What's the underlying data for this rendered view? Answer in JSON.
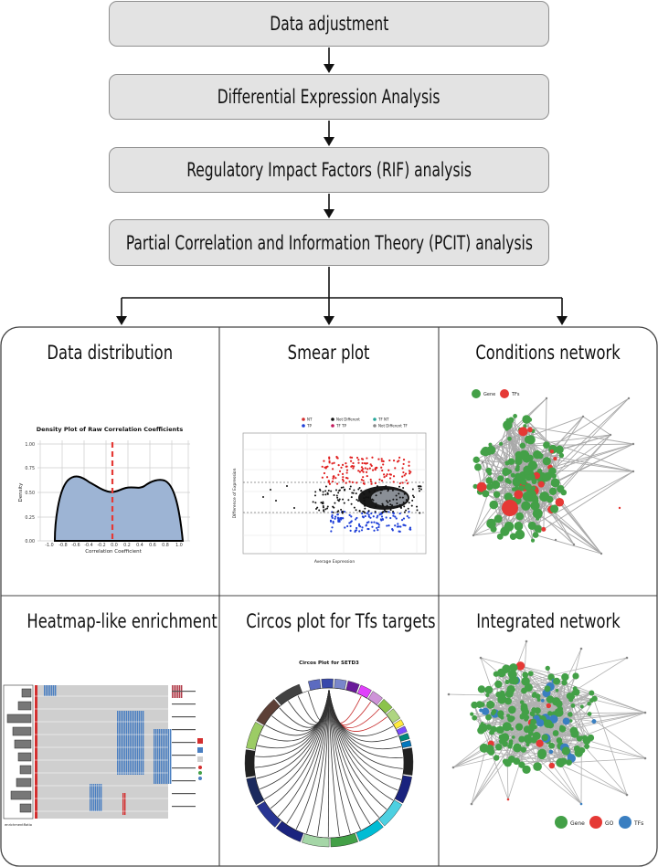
{
  "pipeline": {
    "steps": [
      "Data adjustment",
      "Differential Expression Analysis",
      "Regulatory Impact Factors (RIF) analysis",
      "Partial Correlation and Information Theory (PCIT) analysis"
    ]
  },
  "panels": {
    "data_distribution": {
      "title": "Data distribution",
      "plot_title": "Density Plot of Raw Correlation Coefficients",
      "xlabel": "Correlation Coefficient",
      "ylabel": "Density",
      "x_ticks": [
        "-1.0",
        "-0.8",
        "-0.6",
        "-0.4",
        "-0.2",
        "0.0",
        "0.2",
        "0.4",
        "0.6",
        "0.8",
        "1.0"
      ],
      "y_ticks": [
        "0.00",
        "0.25",
        "0.50",
        "0.75",
        "1.00"
      ]
    },
    "smear_plot": {
      "title": "Smear plot",
      "xlabel": "Average Expression",
      "ylabel": "Difference of Expression",
      "legend": [
        "NT",
        "Not Different",
        "TF NT",
        "TP",
        "TF TP",
        "Not Different TF"
      ]
    },
    "conditions_network": {
      "title": "Conditions network",
      "legend": [
        "Gene",
        "TFs"
      ]
    },
    "heatmap_enrichment": {
      "title": "Heatmap-like enrichment",
      "xlabel": "enrichmentRatio"
    },
    "circos_plot": {
      "title": "Circos plot for Tfs targets",
      "plot_title": "Circos Plot for SETD3"
    },
    "integrated_network": {
      "title": "Integrated network",
      "legend": [
        "Gene",
        "GO",
        "TFs"
      ]
    }
  }
}
